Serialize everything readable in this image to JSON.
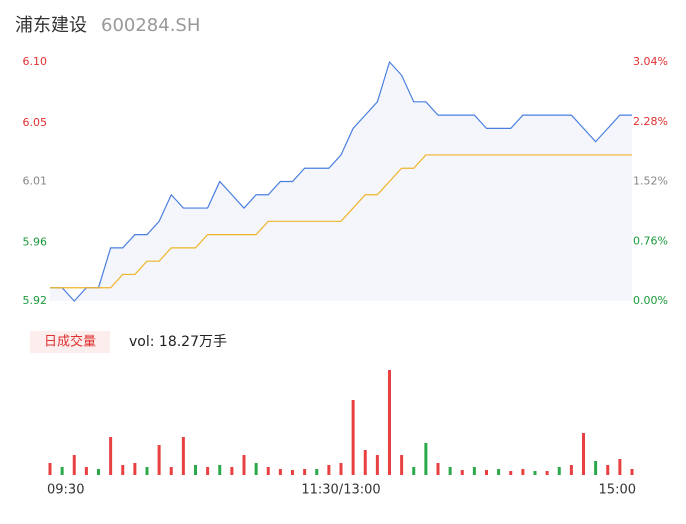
{
  "chart_data": {
    "type": "intraday",
    "title": "浦东建设",
    "subtitle": "600284.SH",
    "x": [
      0,
      5,
      10,
      15,
      20,
      25,
      30,
      35,
      40,
      45,
      50,
      55,
      60,
      65,
      70,
      75,
      80,
      85,
      90,
      95,
      100,
      105,
      110,
      115,
      120,
      125,
      130,
      135,
      140,
      145,
      150,
      155,
      160,
      165,
      170,
      175,
      180,
      185,
      190,
      195,
      200,
      205,
      210,
      215,
      220,
      225,
      230,
      235,
      240
    ],
    "xlim": [
      0,
      240
    ],
    "xticks": [
      {
        "value": 0,
        "label": "09:30"
      },
      {
        "value": 120,
        "label": "11:30/13:00"
      },
      {
        "value": 240,
        "label": "15:00"
      }
    ],
    "ylim": [
      5.92,
      6.1
    ],
    "yticks": [
      5.92,
      {
        "value": 5.964,
        "label": "5.96"
      },
      6.01,
      {
        "value": 6.054,
        "label": "6.05"
      },
      {
        "value": 6.1,
        "label": "6.10"
      }
    ],
    "ytick_colors": [
      "#1a9a3a",
      "#1a9a3a",
      "#888888",
      "#e03030",
      "#e03030"
    ],
    "y2lim": [
      0,
      3.04
    ],
    "y2ticks": [
      {
        "value": 0,
        "label": "0.00%"
      },
      {
        "value": 0.76,
        "label": "0.76%"
      },
      {
        "value": 1.52,
        "label": "1.52%"
      },
      {
        "value": 2.28,
        "label": "2.28%"
      },
      {
        "value": 3.04,
        "label": "3.04%"
      }
    ],
    "y2tick_colors": [
      "#1a9a3a",
      "#1a9a3a",
      "#888888",
      "#e03030",
      "#e03030"
    ],
    "area_color": "#f4f6fc",
    "series": [
      {
        "color": "#4a7fe0",
        "values": [
          5.93,
          5.93,
          5.92,
          5.93,
          5.93,
          5.96,
          5.96,
          5.97,
          5.97,
          5.98,
          6.0,
          5.99,
          5.99,
          5.99,
          6.01,
          6.0,
          5.99,
          6.0,
          6.0,
          6.01,
          6.01,
          6.02,
          6.02,
          6.02,
          6.03,
          6.05,
          6.06,
          6.07,
          6.1,
          6.09,
          6.07,
          6.07,
          6.06,
          6.06,
          6.06,
          6.06,
          6.05,
          6.05,
          6.05,
          6.06,
          6.06,
          6.06,
          6.06,
          6.06,
          6.05,
          6.04,
          6.05,
          6.06,
          6.06
        ]
      },
      {
        "color": "#f0b429",
        "values": [
          5.93,
          5.93,
          5.93,
          5.93,
          5.93,
          5.93,
          5.94,
          5.94,
          5.95,
          5.95,
          5.96,
          5.96,
          5.96,
          5.97,
          5.97,
          5.97,
          5.97,
          5.97,
          5.98,
          5.98,
          5.98,
          5.98,
          5.98,
          5.98,
          5.98,
          5.99,
          6.0,
          6.0,
          6.01,
          6.02,
          6.02,
          6.03,
          6.03,
          6.03,
          6.03,
          6.03,
          6.03,
          6.03,
          6.03,
          6.03,
          6.03,
          6.03,
          6.03,
          6.03,
          6.03,
          6.03,
          6.03,
          6.03,
          6.03
        ]
      }
    ],
    "volume": {
      "label": "日成交量",
      "summary": "vol: 18.27万手",
      "vlim": [
        0,
        105
      ],
      "values": [
        12,
        8,
        20,
        8,
        6,
        38,
        10,
        12,
        8,
        30,
        8,
        38,
        10,
        8,
        10,
        8,
        20,
        12,
        8,
        6,
        5,
        6,
        6,
        10,
        12,
        75,
        25,
        20,
        105,
        20,
        8,
        32,
        12,
        8,
        5,
        8,
        5,
        6,
        4,
        6,
        4,
        4,
        8,
        10,
        42,
        14,
        10,
        16,
        6
      ],
      "colors": [
        "#e84040",
        "#2aa84a",
        "#e84040",
        "#e84040",
        "#2aa84a",
        "#e84040",
        "#e84040",
        "#e84040",
        "#2aa84a",
        "#e84040",
        "#e84040",
        "#e84040",
        "#2aa84a",
        "#e84040",
        "#2aa84a",
        "#e84040",
        "#e84040",
        "#2aa84a",
        "#e84040",
        "#e84040",
        "#e84040",
        "#e84040",
        "#2aa84a",
        "#e84040",
        "#e84040",
        "#e84040",
        "#e84040",
        "#e84040",
        "#e84040",
        "#e84040",
        "#2aa84a",
        "#2aa84a",
        "#e84040",
        "#2aa84a",
        "#e84040",
        "#2aa84a",
        "#e84040",
        "#2aa84a",
        "#e84040",
        "#e84040",
        "#2aa84a",
        "#e84040",
        "#2aa84a",
        "#e84040",
        "#e84040",
        "#2aa84a",
        "#e84040",
        "#e84040",
        "#e84040"
      ]
    }
  }
}
